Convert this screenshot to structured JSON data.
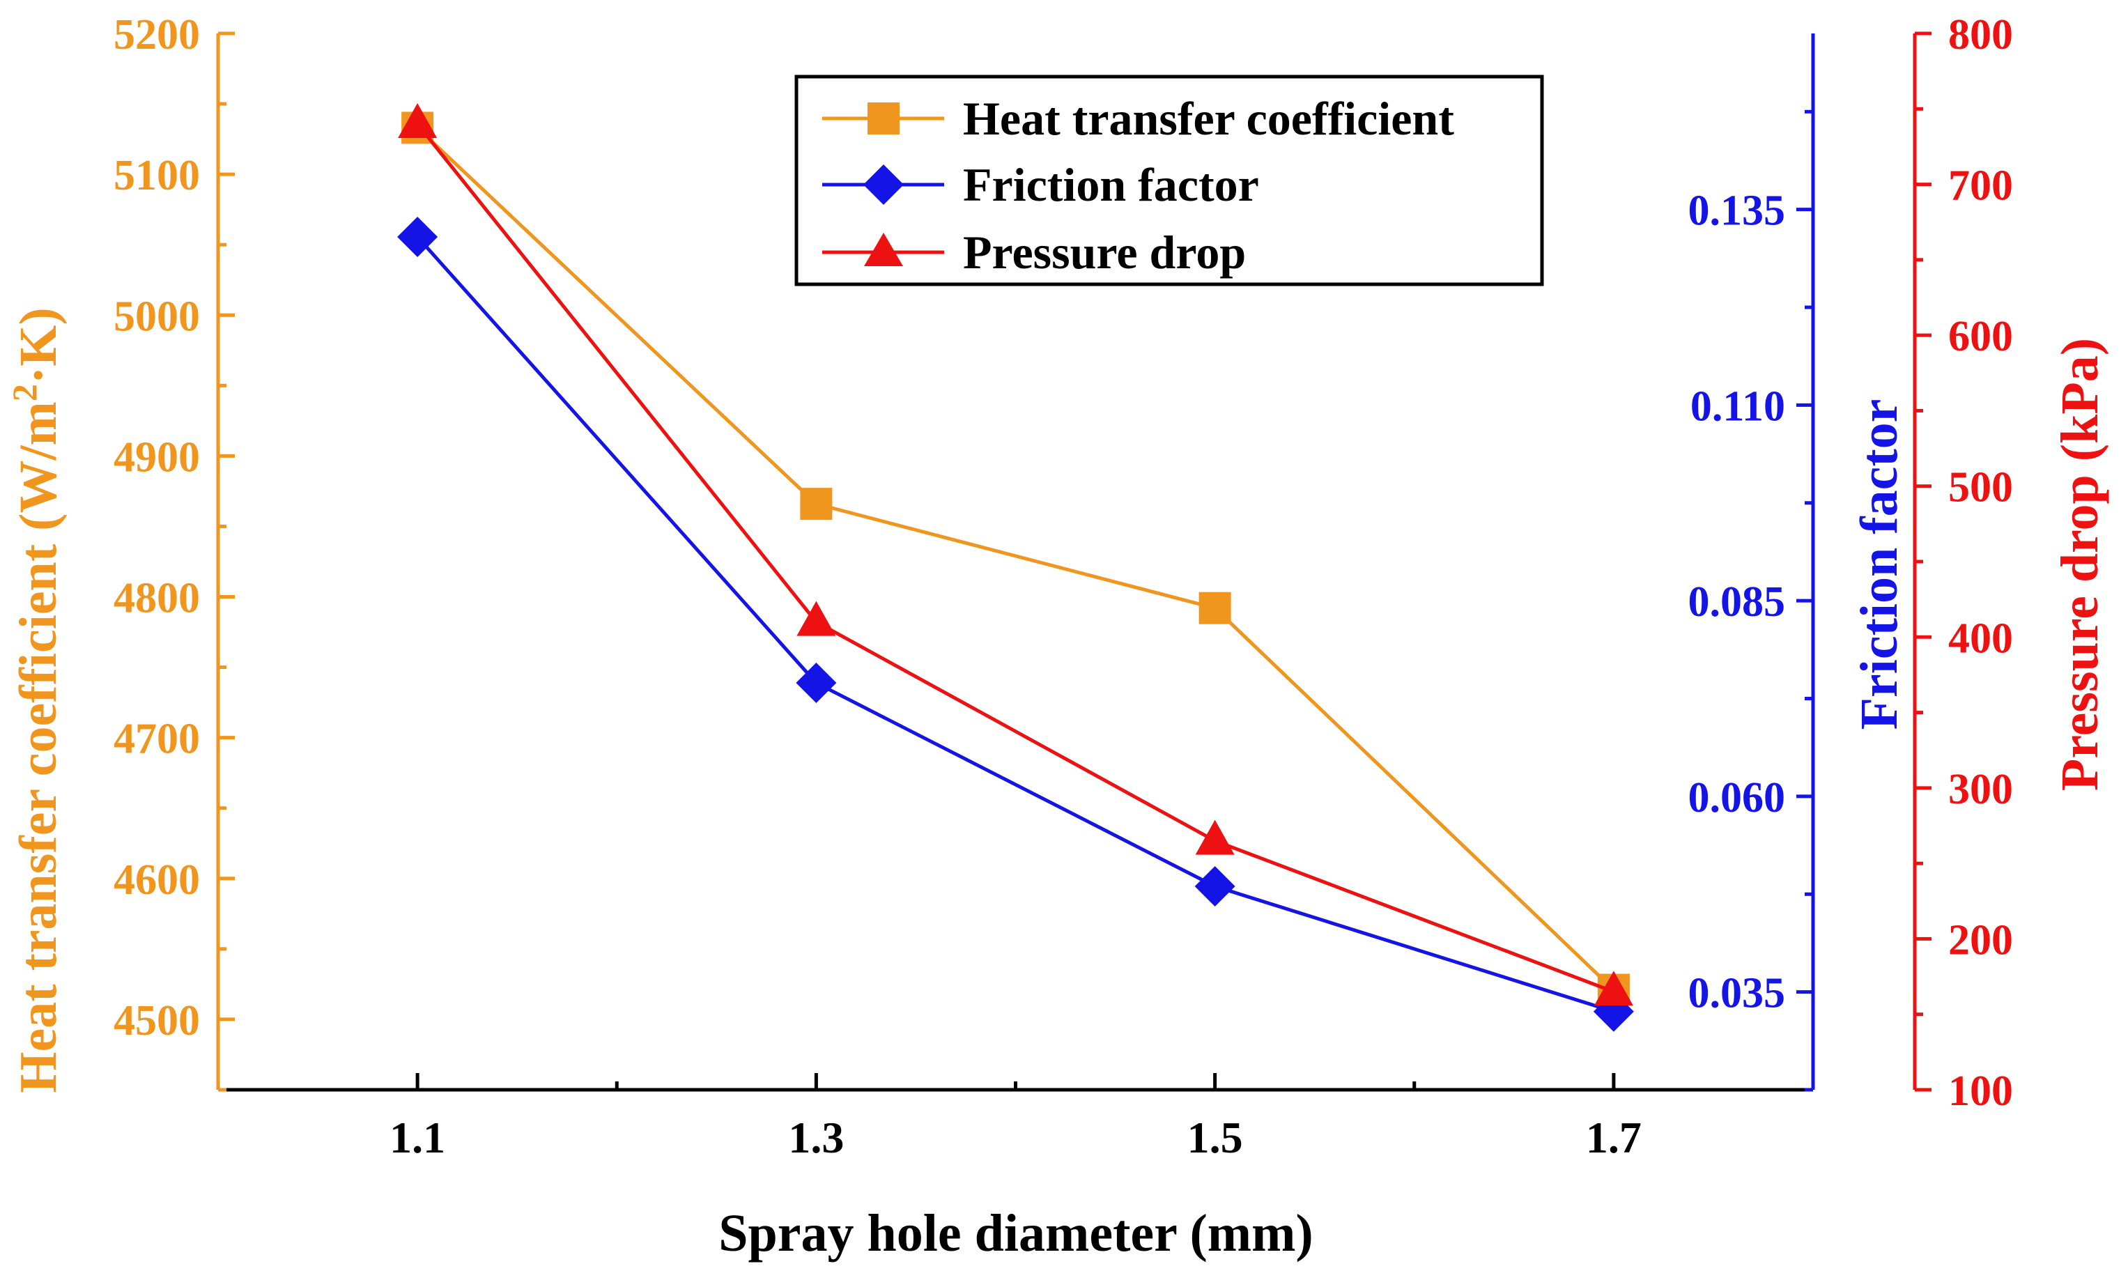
{
  "chart_data": {
    "type": "line",
    "xlabel": "Spray hole diameter (mm)",
    "categories": [
      "1.1",
      "1.3",
      "1.5",
      "1.7"
    ],
    "x": [
      1.1,
      1.3,
      1.5,
      1.7
    ],
    "xlim": [
      1.0,
      1.8
    ],
    "legend_position": "top-right",
    "grid": false,
    "axes": {
      "left": {
        "label_prefix": "Heat transfer coefficient (W/m",
        "label_sup": "2",
        "label_suffix": "·K)",
        "ylim": [
          4450,
          5200
        ],
        "ticks": [
          "4500",
          "4600",
          "4700",
          "4800",
          "4900",
          "5000",
          "5100",
          "5200"
        ],
        "color": "#f0961e"
      },
      "right_inner": {
        "label": "Friction factor",
        "ylim": [
          0.0225,
          0.1575
        ],
        "ticks": [
          "0.035",
          "0.060",
          "0.085",
          "0.110",
          "0.135"
        ],
        "color": "#1414e6"
      },
      "right_outer": {
        "label": "Pressure drop (kPa)",
        "ylim": [
          100,
          800
        ],
        "ticks": [
          "100",
          "200",
          "300",
          "400",
          "500",
          "600",
          "700",
          "800"
        ],
        "color": "#ee1111"
      }
    },
    "series": [
      {
        "name": "Heat transfer coefficient",
        "axis": "left",
        "marker": "square",
        "color": "#f0961e",
        "values": [
          5133,
          4866,
          4792,
          4521
        ]
      },
      {
        "name": "Friction factor",
        "axis": "right_inner",
        "marker": "diamond",
        "color": "#1414e6",
        "values": [
          0.1315,
          0.0745,
          0.0485,
          0.0325
        ]
      },
      {
        "name": "Pressure drop",
        "axis": "right_outer",
        "marker": "triangle",
        "color": "#ee1111",
        "values": [
          740,
          410,
          265,
          165
        ]
      }
    ]
  }
}
